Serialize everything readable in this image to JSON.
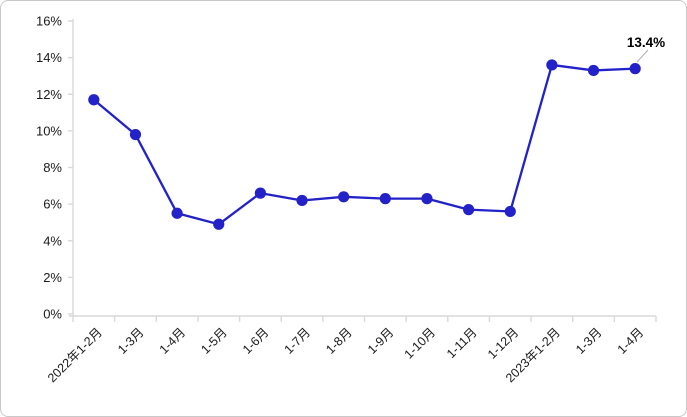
{
  "chart_data": {
    "type": "line",
    "categories": [
      "2022年1-2月",
      "1-3月",
      "1-4月",
      "1-5月",
      "1-6月",
      "1-7月",
      "1-8月",
      "1-9月",
      "1-10月",
      "1-11月",
      "1-12月",
      "2023年1-2月",
      "1-3月",
      "1-4月"
    ],
    "series": [
      {
        "values": [
          11.7,
          9.8,
          5.5,
          4.9,
          6.6,
          6.2,
          6.4,
          6.3,
          6.3,
          5.7,
          5.6,
          13.6,
          13.3,
          13.4
        ]
      }
    ],
    "ylim": [
      0,
      16
    ],
    "ytick_step": 2,
    "ytick_suffix": "%",
    "ytick_labels": [
      "0%",
      "2%",
      "4%",
      "6%",
      "8%",
      "10%",
      "12%",
      "14%",
      "16%"
    ],
    "grid": false,
    "legend": false,
    "x_label_rotation_deg": -45,
    "annotation": {
      "text": "13.4%",
      "target_category": "1-4月",
      "target_index": 13
    },
    "colors": {
      "line": "#2222c8",
      "marker": "#2222c8",
      "axis": "#d9d9d9",
      "tick_label": "#1a1a1a",
      "annotation_text": "#000000",
      "leader_line": "#b0b0b0",
      "frame_border": "#c9c9c9",
      "background": "#ffffff"
    }
  }
}
